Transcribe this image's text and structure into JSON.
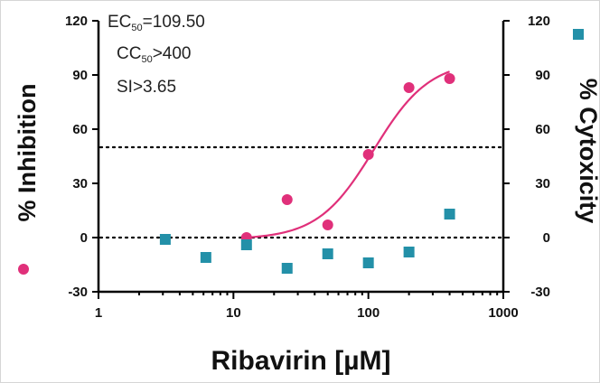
{
  "chart_data": {
    "type": "scatter",
    "xscale": "log",
    "xlim": [
      1,
      1000
    ],
    "x_ticks": [
      1,
      10,
      100,
      1000
    ],
    "x_tick_labels": [
      "1",
      "10",
      "100",
      "1000"
    ],
    "xlabel": "Ribavirin [µM]",
    "ylabel_left": "% Inhibition",
    "ylabel_right": "% Cytoxicity",
    "ylim": [
      -30,
      120
    ],
    "y_ticks": [
      -30,
      0,
      30,
      60,
      90,
      120
    ],
    "y_tick_labels": [
      "-30",
      "0",
      "30",
      "60",
      "90",
      "120"
    ],
    "reference_lines": [
      50,
      0
    ],
    "annotations": {
      "ec50_main": "EC",
      "ec50_sub": "50",
      "ec50_value": "=109.50",
      "cc50_main": "CC",
      "cc50_sub": "50",
      "cc50_value": ">400",
      "si_text": "SI>3.65"
    },
    "series": [
      {
        "key": "inhibition",
        "marker": "circle",
        "color": "#e0307a",
        "x": [
          12.5,
          25,
          50,
          100,
          200,
          400
        ],
        "y": [
          0,
          21,
          7,
          46,
          83,
          88
        ]
      },
      {
        "key": "cytotoxicity",
        "marker": "square",
        "color": "#2390a8",
        "x": [
          3.125,
          6.25,
          12.5,
          25,
          50,
          100,
          200,
          400
        ],
        "y": [
          -1,
          -11,
          -4,
          -17,
          -9,
          -14,
          -8,
          13
        ]
      }
    ],
    "fit_curve": {
      "color": "#e0307a",
      "bottom": -1,
      "top": 98,
      "ec50": 109.5,
      "hill": 2.1,
      "x_range": [
        12.5,
        400
      ]
    },
    "grid": false,
    "legend": "markers beside axis titles"
  }
}
